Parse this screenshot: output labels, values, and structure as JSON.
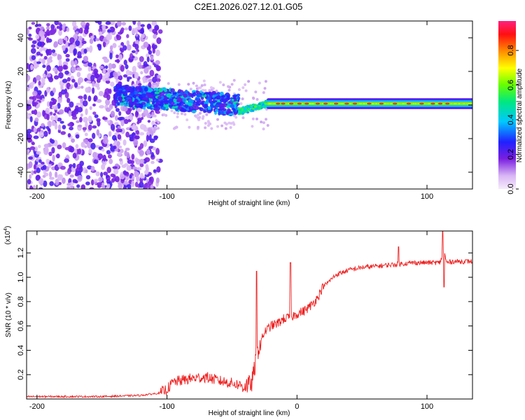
{
  "figure": {
    "title": "C2E1.2026.027.12.01.G05"
  },
  "chart_data": [
    {
      "type": "heatmap",
      "title": "",
      "xlabel": "Height of straight line (km)",
      "ylabel": "Frequency (Hz)",
      "xlim": [
        -208,
        135
      ],
      "ylim": [
        -50,
        50
      ],
      "xticks": [
        -200,
        -100,
        0,
        100
      ],
      "yticks": [
        -40,
        -20,
        0,
        20,
        40
      ],
      "description_of_field": [
        {
          "x_range": [
            -208,
            -105
          ],
          "spread_hz": 50,
          "amplitude": "low, noisy"
        },
        {
          "x_range": [
            -140,
            -45
          ],
          "center_hz": [
            6,
            0
          ],
          "spread_hz": 8,
          "amplitude": "medium (blue-cyan)"
        },
        {
          "x_range": [
            -45,
            -22
          ],
          "center_hz": -4,
          "spread_hz": 3,
          "amplitude": "medium-high"
        },
        {
          "x_range": [
            -22,
            135
          ],
          "center_hz": 0.8,
          "spread_hz": 2,
          "amplitude": "high (green-red core)"
        }
      ],
      "colorbar": {
        "label": "Normalized spectral amplitude",
        "ticks": [
          "0.0",
          "0.2",
          "0.4",
          "0.6",
          "0.8"
        ],
        "range": [
          0,
          0.97
        ]
      }
    },
    {
      "type": "line",
      "title": "",
      "xlabel": "Height of straight line (km)",
      "ylabel": "SNR (10 * v/v)",
      "y_multiplier": "(x10",
      "y_multiplier_exp": "4",
      "xlim": [
        -208,
        135
      ],
      "ylim": [
        0,
        1.38
      ],
      "xticks": [
        -200,
        -100,
        0,
        100
      ],
      "yticks": [
        0.2,
        0.4,
        0.6,
        0.8,
        1.0,
        1.2
      ],
      "series": [
        {
          "name": "SNR",
          "color": "#ee2020",
          "x": [
            -208,
            -150,
            -120,
            -105,
            -100,
            -95,
            -90,
            -80,
            -70,
            -60,
            -50,
            -42,
            -35,
            -30,
            -25,
            -20,
            -15,
            -10,
            -5,
            0,
            5,
            10,
            15,
            20,
            25,
            30,
            40,
            50,
            60,
            70,
            80,
            90,
            100,
            110,
            113,
            115,
            120,
            135
          ],
          "y": [
            0.02,
            0.02,
            0.03,
            0.05,
            0.08,
            0.14,
            0.15,
            0.17,
            0.18,
            0.15,
            0.13,
            0.11,
            0.12,
            0.4,
            0.55,
            0.6,
            0.62,
            0.66,
            0.67,
            0.7,
            0.72,
            0.76,
            0.82,
            0.92,
            0.97,
            1.02,
            1.06,
            1.08,
            1.09,
            1.1,
            1.11,
            1.12,
            1.12,
            1.12,
            1.22,
            1.12,
            1.13,
            1.13
          ]
        }
      ],
      "spikes": [
        {
          "x": -31,
          "y": 1.05
        },
        {
          "x": -5,
          "y": 1.12
        },
        {
          "x": 78,
          "y": 1.25
        },
        {
          "x": 112,
          "y": 1.38
        },
        {
          "x": 113,
          "y": 0.92
        }
      ]
    }
  ]
}
